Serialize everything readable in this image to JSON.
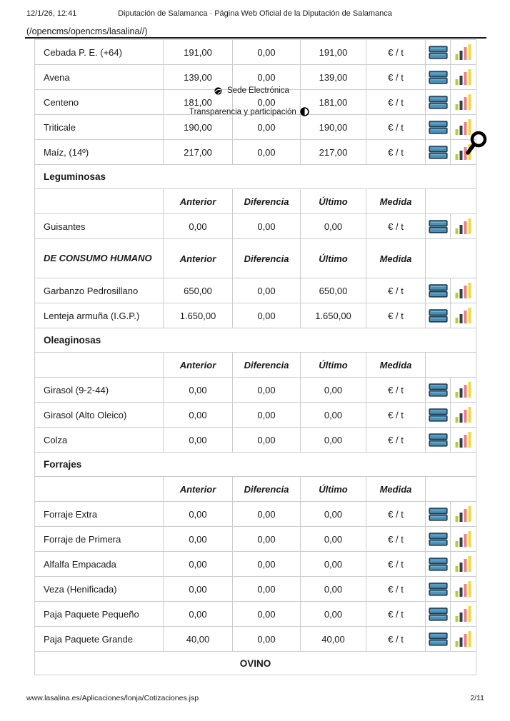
{
  "header": {
    "timestamp": "12/1/26, 12:41",
    "title": "Diputación de Salamanca · Página Web Oficial de la Diputación de Salamanca",
    "breadcrumb": "(/opencms/opencms/lasalina//)"
  },
  "overlays": {
    "sede_label": "Sede Electrónica",
    "transparencia_label": "Transparencia y participación"
  },
  "icons": {
    "table_icon": {
      "fill": "#4a8fb5",
      "stripe": "#7fb6d1",
      "stroke": "#1d3a50"
    },
    "bar_chart_icon": {
      "colors": [
        "#b3cc41",
        "#32404e",
        "#ee7e85",
        "#f3d839"
      ]
    },
    "search_icon": {
      "color": "#000000"
    },
    "globe_icon": {
      "color": "#000000"
    },
    "half_circle_icon": {
      "color": "#000000"
    }
  },
  "table": {
    "column_headers": [
      "Anterior",
      "Diferencia",
      "Último",
      "Medida"
    ],
    "rows": [
      {
        "type": "data",
        "name": "Cebada P. E. (+64)",
        "anterior": "191,00",
        "diferencia": "0,00",
        "ultimo": "191,00",
        "medida": "€ / t"
      },
      {
        "type": "data",
        "name": "Avena",
        "anterior": "139,00",
        "diferencia": "0,00",
        "ultimo": "139,00",
        "medida": "€ / t"
      },
      {
        "type": "data",
        "name": "Centeno",
        "anterior": "181,00",
        "diferencia": "0,00",
        "ultimo": "181,00",
        "medida": "€ / t"
      },
      {
        "type": "data",
        "name": "Triticale",
        "anterior": "190,00",
        "diferencia": "0,00",
        "ultimo": "190,00",
        "medida": "€ / t"
      },
      {
        "type": "data",
        "name": "Maíz, (14º)",
        "anterior": "217,00",
        "diferencia": "0,00",
        "ultimo": "217,00",
        "medida": "€ / t"
      },
      {
        "type": "section",
        "title": "Leguminosas"
      },
      {
        "type": "header",
        "title": ""
      },
      {
        "type": "data",
        "name": "Guisantes",
        "anterior": "0,00",
        "diferencia": "0,00",
        "ultimo": "0,00",
        "medida": "€ / t"
      },
      {
        "type": "header",
        "title": "DE CONSUMO HUMANO",
        "tall": true
      },
      {
        "type": "data",
        "name": "Garbanzo Pedrosillano",
        "anterior": "650,00",
        "diferencia": "0,00",
        "ultimo": "650,00",
        "medida": "€ / t"
      },
      {
        "type": "data",
        "name": "Lenteja armuña (I.G.P.)",
        "anterior": "1.650,00",
        "diferencia": "0,00",
        "ultimo": "1.650,00",
        "medida": "€ / t"
      },
      {
        "type": "section",
        "title": "Oleaginosas"
      },
      {
        "type": "header",
        "title": ""
      },
      {
        "type": "data",
        "name": "Girasol (9-2-44)",
        "anterior": "0,00",
        "diferencia": "0,00",
        "ultimo": "0,00",
        "medida": "€ / t"
      },
      {
        "type": "data",
        "name": "Girasol (Alto Oleico)",
        "anterior": "0,00",
        "diferencia": "0,00",
        "ultimo": "0,00",
        "medida": "€ / t"
      },
      {
        "type": "data",
        "name": "Colza",
        "anterior": "0,00",
        "diferencia": "0,00",
        "ultimo": "0,00",
        "medida": "€ / t"
      },
      {
        "type": "section",
        "title": "Forrajes"
      },
      {
        "type": "header",
        "title": ""
      },
      {
        "type": "data",
        "name": "Forraje Extra",
        "anterior": "0,00",
        "diferencia": "0,00",
        "ultimo": "0,00",
        "medida": "€ / t"
      },
      {
        "type": "data",
        "name": "Forraje de Primera",
        "anterior": "0,00",
        "diferencia": "0,00",
        "ultimo": "0,00",
        "medida": "€ / t"
      },
      {
        "type": "data",
        "name": "Alfalfa Empacada",
        "anterior": "0,00",
        "diferencia": "0,00",
        "ultimo": "0,00",
        "medida": "€ / t"
      },
      {
        "type": "data",
        "name": "Veza (Henificada)",
        "anterior": "0,00",
        "diferencia": "0,00",
        "ultimo": "0,00",
        "medida": "€ / t"
      },
      {
        "type": "data",
        "name": "Paja Paquete Pequeño",
        "anterior": "0,00",
        "diferencia": "0,00",
        "ultimo": "0,00",
        "medida": "€ / t"
      },
      {
        "type": "data",
        "name": "Paja Paquete Grande",
        "anterior": "40,00",
        "diferencia": "0,00",
        "ultimo": "40,00",
        "medida": "€ / t"
      },
      {
        "type": "section-center",
        "title": "OVINO"
      }
    ]
  },
  "footer": {
    "url": "www.lasalina.es/Aplicaciones/lonja/Cotizaciones.jsp",
    "page": "2/11"
  }
}
